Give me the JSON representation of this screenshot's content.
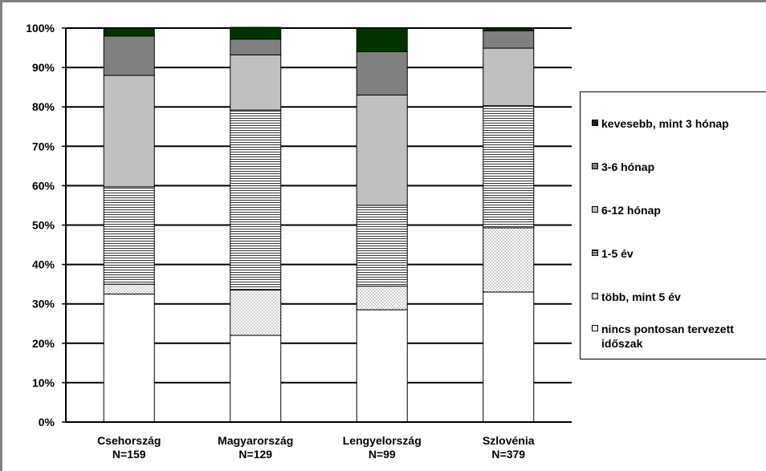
{
  "chart_data": {
    "type": "bar",
    "stacked": true,
    "percent": true,
    "categories": [
      "Csehország\nN=159",
      "Magyarország\nN=129",
      "Lengyelország\nN=99",
      "Szlovénia\nN=379"
    ],
    "series": [
      {
        "name": "nincs pontosan tervezett időszak",
        "values": [
          32.5,
          22.0,
          28.5,
          33.0
        ],
        "fill": "#ffffff",
        "pattern": "none"
      },
      {
        "name": "több, mint 5 év",
        "values": [
          2.5,
          11.5,
          6.0,
          16.3
        ],
        "fill": "#ffffff",
        "pattern": "dots"
      },
      {
        "name": "1-5 év",
        "values": [
          24.7,
          45.7,
          20.5,
          31.0
        ],
        "fill": "#ffffff",
        "pattern": "hlines"
      },
      {
        "name": "6-12 hónap",
        "values": [
          28.3,
          14.0,
          28.0,
          14.6
        ],
        "fill": "#c0c0c0",
        "pattern": "none"
      },
      {
        "name": "3-6 hónap",
        "values": [
          10.0,
          4.0,
          11.0,
          4.4
        ],
        "fill": "#808080",
        "pattern": "none"
      },
      {
        "name": "kevesebb, mint 3 hónap",
        "values": [
          2.0,
          3.0,
          6.0,
          0.7
        ],
        "fill": "#003300",
        "pattern": "none"
      }
    ],
    "ylim": [
      0,
      100
    ],
    "yticks": [
      "0%",
      "10%",
      "20%",
      "30%",
      "40%",
      "50%",
      "60%",
      "70%",
      "80%",
      "90%",
      "100%"
    ],
    "grid": true,
    "legend_position": "right",
    "title": "",
    "xlabel": "",
    "ylabel": ""
  },
  "legend": {
    "items": [
      {
        "label": "kevesebb, mint 3 hónap",
        "swatch_fill": "#003300"
      },
      {
        "label": "3-6 hónap",
        "swatch_fill": "#808080"
      },
      {
        "label": "6-12 hónap",
        "swatch_fill": "#c0c0c0"
      },
      {
        "label": "1-5 év",
        "swatch_fill": "#ffffff",
        "swatch_pattern": "hlines"
      },
      {
        "label": "több, mint 5 év",
        "swatch_fill": "#ffffff",
        "swatch_pattern": "dots"
      },
      {
        "label": "nincs pontosan tervezett\nidőszak",
        "swatch_fill": "#ffffff"
      }
    ]
  }
}
